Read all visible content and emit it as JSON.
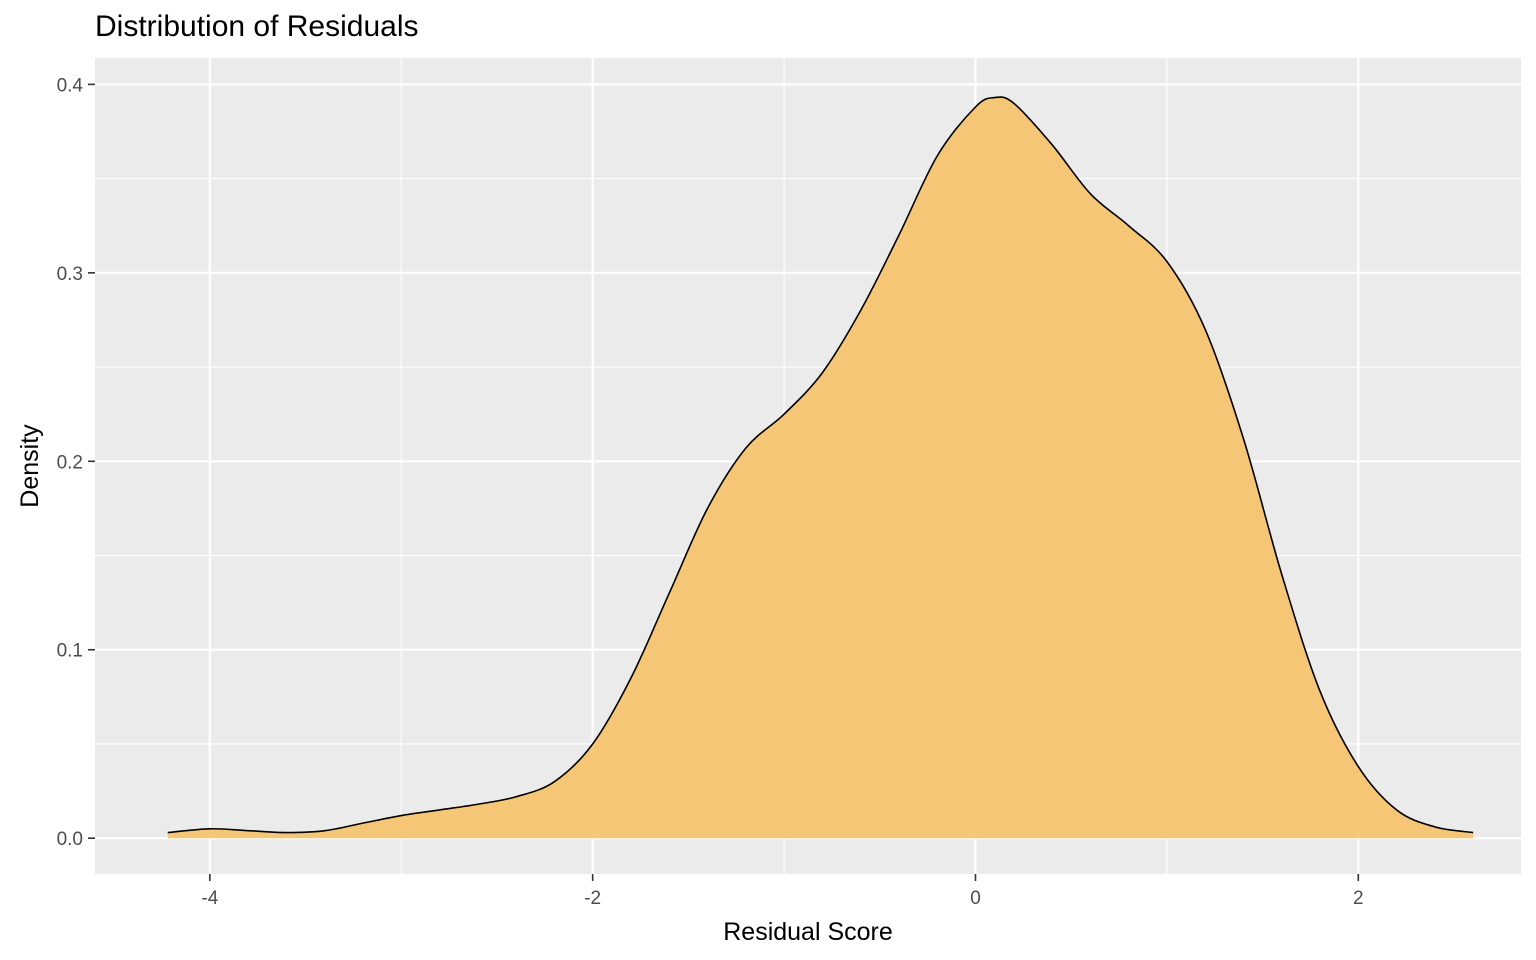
{
  "chart_data": {
    "type": "area",
    "title": "Distribution of Residuals",
    "xlabel": "Residual Score",
    "ylabel": "Density",
    "xlim": [
      -4.6,
      2.85
    ],
    "ylim": [
      -0.019,
      0.414
    ],
    "x_ticks": [
      -4,
      -2,
      0,
      2
    ],
    "x_tick_labels": [
      "-4",
      "-2",
      "0",
      "2"
    ],
    "y_ticks": [
      0.0,
      0.1,
      0.2,
      0.3,
      0.4
    ],
    "y_tick_labels": [
      "0.0",
      "0.1",
      "0.2",
      "0.3",
      "0.4"
    ],
    "grid": true,
    "fill_color": "#f5c26b",
    "line_color": "#000000",
    "panel_color": "#ebebeb",
    "series": [
      {
        "x": [
          -4.22,
          -4.0,
          -3.8,
          -3.6,
          -3.4,
          -3.2,
          -3.0,
          -2.8,
          -2.6,
          -2.4,
          -2.2,
          -2.0,
          -1.8,
          -1.6,
          -1.4,
          -1.2,
          -1.0,
          -0.8,
          -0.6,
          -0.4,
          -0.2,
          0.0,
          0.1,
          0.2,
          0.4,
          0.6,
          0.8,
          1.0,
          1.2,
          1.4,
          1.6,
          1.8,
          2.0,
          2.2,
          2.4,
          2.6
        ],
        "y": [
          0.003,
          0.005,
          0.004,
          0.003,
          0.004,
          0.008,
          0.012,
          0.015,
          0.018,
          0.022,
          0.03,
          0.05,
          0.085,
          0.13,
          0.175,
          0.207,
          0.225,
          0.247,
          0.28,
          0.32,
          0.362,
          0.388,
          0.393,
          0.39,
          0.368,
          0.342,
          0.325,
          0.306,
          0.27,
          0.212,
          0.14,
          0.078,
          0.038,
          0.015,
          0.006,
          0.003
        ]
      }
    ]
  }
}
